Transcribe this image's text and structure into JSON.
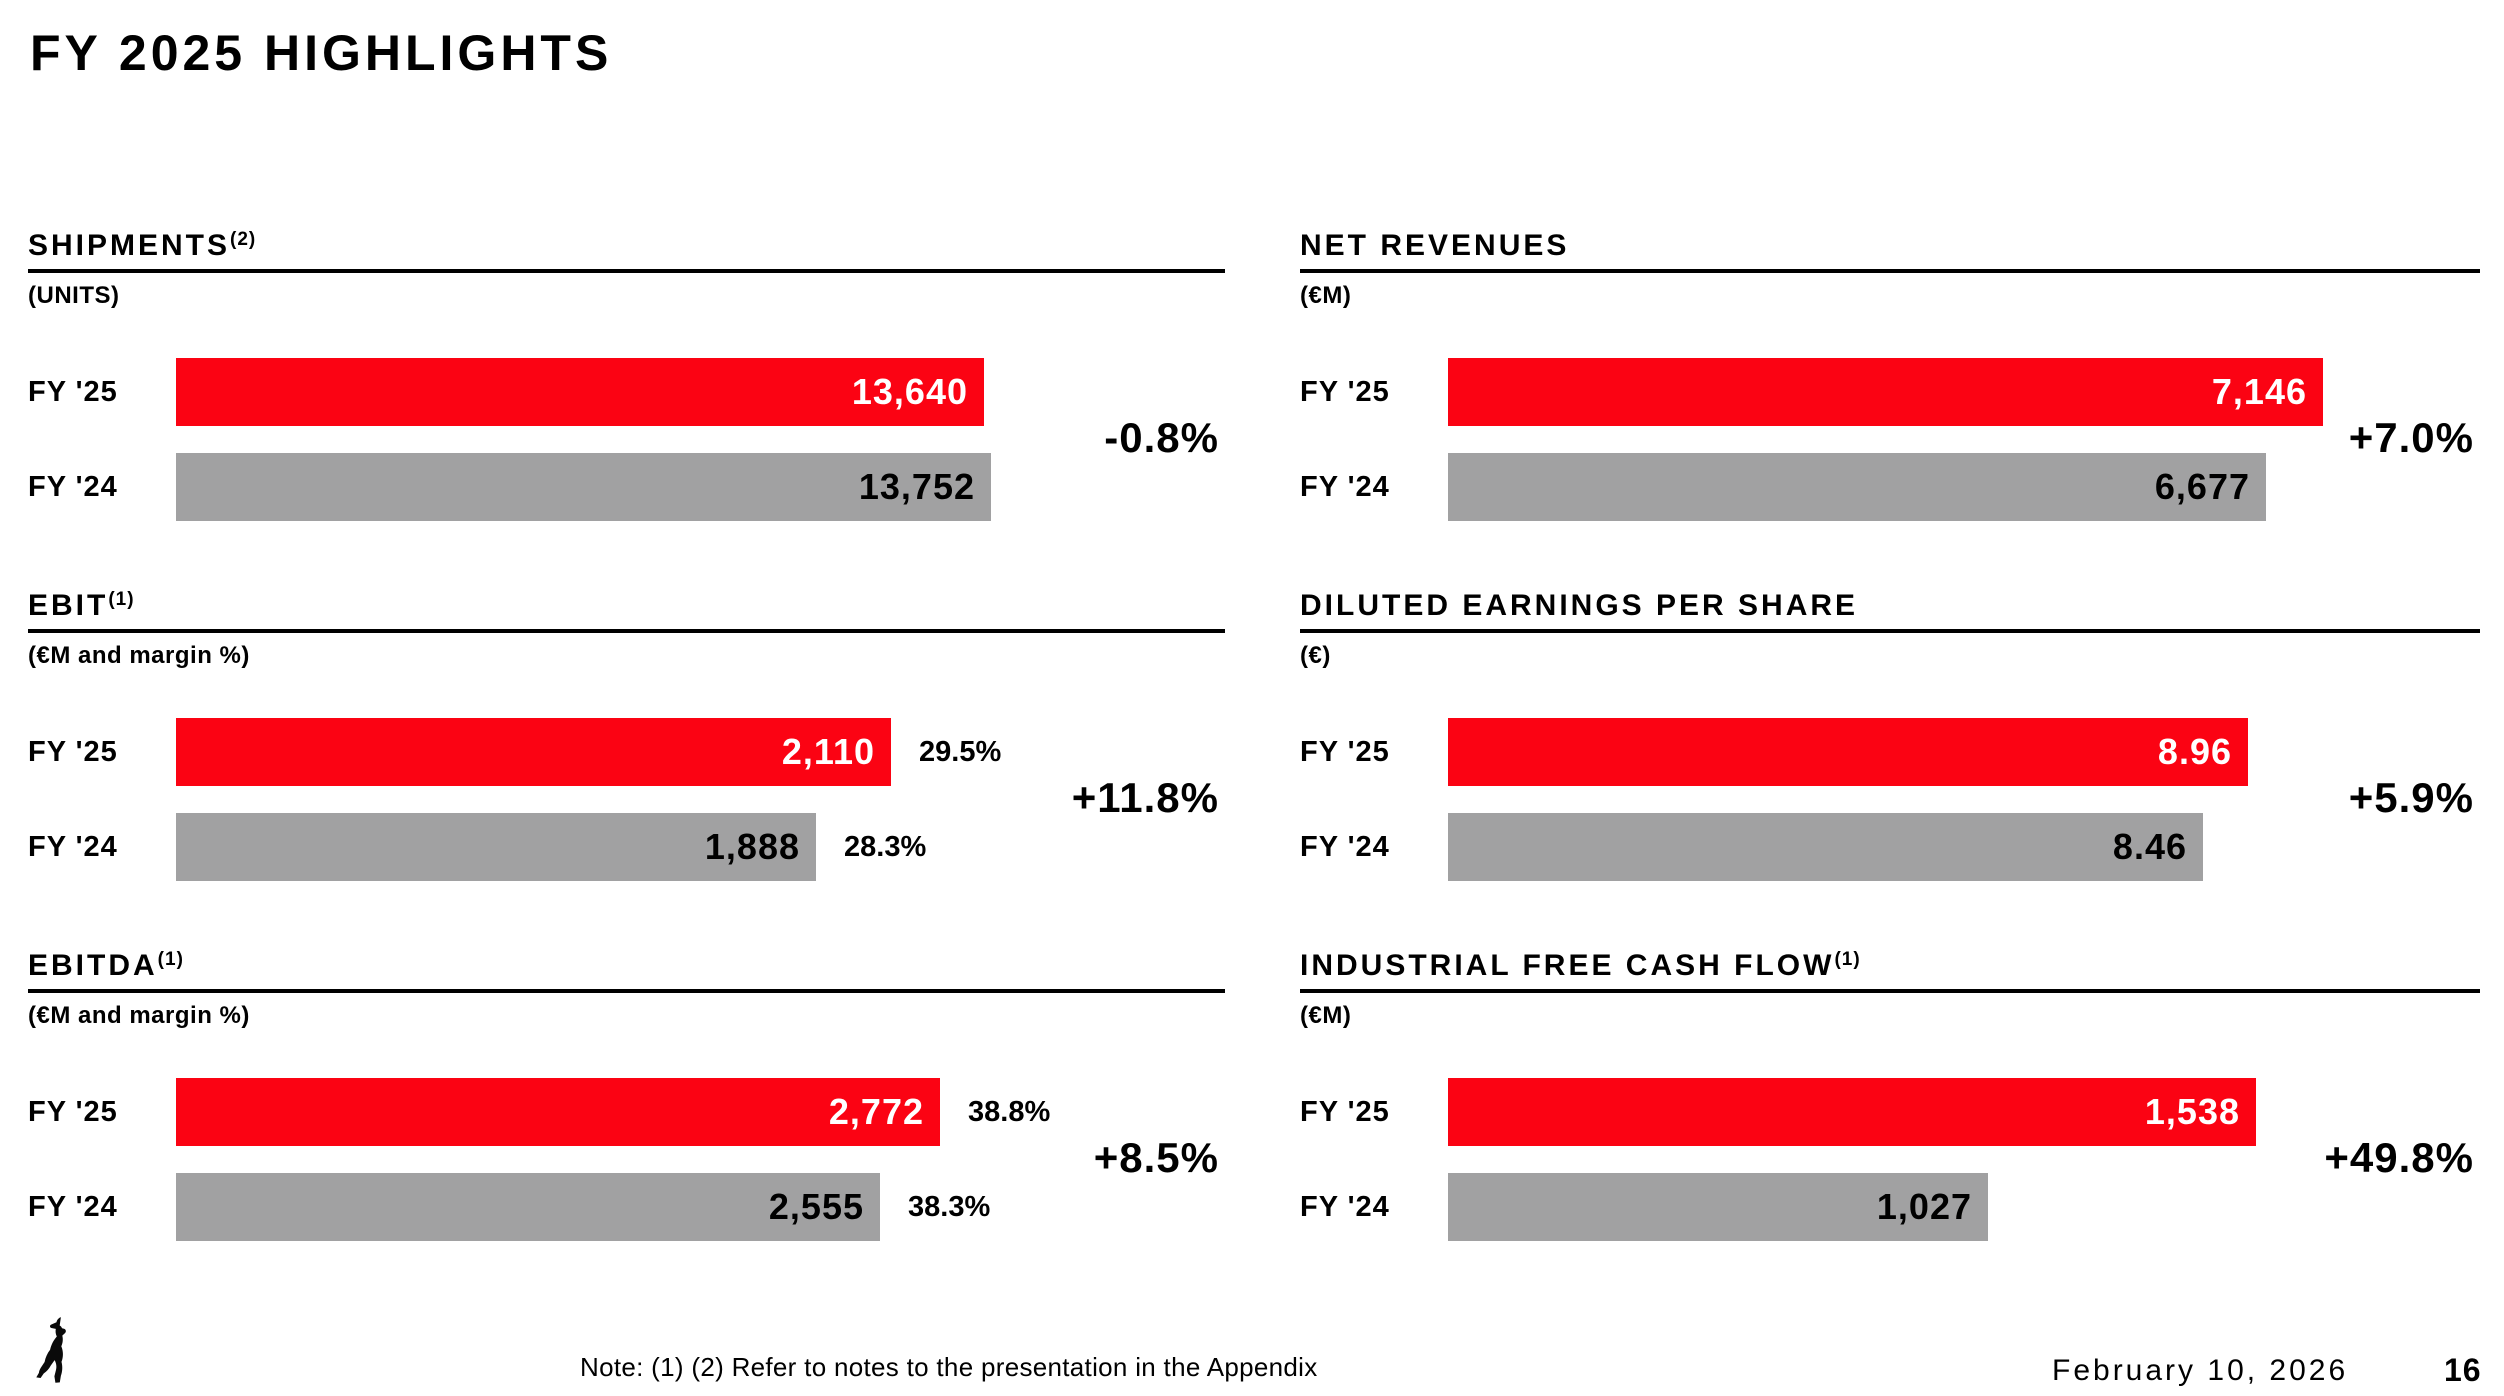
{
  "slide": {
    "title": "FY 2025 HIGHLIGHTS"
  },
  "colors": {
    "bar_red": "#FB0313",
    "bar_gray": "#A1A1A2",
    "text": "#000000",
    "background": "#FFFFFF"
  },
  "chart_data": [
    {
      "type": "bar",
      "orientation": "horizontal",
      "title": "SHIPMENTS",
      "title_superscript": "(2)",
      "unit_label": "(UNITS)",
      "categories": [
        "FY '25",
        "FY '24"
      ],
      "values": [
        13640,
        13752
      ],
      "value_labels": [
        "13,640",
        "13,752"
      ],
      "margin_labels": [
        "",
        ""
      ],
      "change_label": "-0.8%",
      "series_colors": [
        "#FB0313",
        "#A1A1A2"
      ],
      "legend_position": "none",
      "grid": false
    },
    {
      "type": "bar",
      "orientation": "horizontal",
      "title": "NET REVENUES",
      "title_superscript": "",
      "unit_label": "(€M)",
      "categories": [
        "FY '25",
        "FY '24"
      ],
      "values": [
        7146,
        6677
      ],
      "value_labels": [
        "7,146",
        "6,677"
      ],
      "margin_labels": [
        "",
        ""
      ],
      "change_label": "+7.0%",
      "series_colors": [
        "#FB0313",
        "#A1A1A2"
      ],
      "legend_position": "none",
      "grid": false
    },
    {
      "type": "bar",
      "orientation": "horizontal",
      "title": "EBIT",
      "title_superscript": "(1)",
      "unit_label": "(€M and margin %)",
      "categories": [
        "FY '25",
        "FY '24"
      ],
      "values": [
        2110,
        1888
      ],
      "value_labels": [
        "2,110",
        "1,888"
      ],
      "margin_labels": [
        "29.5%",
        "28.3%"
      ],
      "change_label": "+11.8%",
      "series_colors": [
        "#FB0313",
        "#A1A1A2"
      ],
      "legend_position": "none",
      "grid": false
    },
    {
      "type": "bar",
      "orientation": "horizontal",
      "title": "DILUTED EARNINGS PER SHARE",
      "title_superscript": "",
      "unit_label": "(€)",
      "categories": [
        "FY '25",
        "FY '24"
      ],
      "values": [
        8.96,
        8.46
      ],
      "value_labels": [
        "8.96",
        "8.46"
      ],
      "margin_labels": [
        "",
        ""
      ],
      "change_label": "+5.9%",
      "series_colors": [
        "#FB0313",
        "#A1A1A2"
      ],
      "legend_position": "none",
      "grid": false
    },
    {
      "type": "bar",
      "orientation": "horizontal",
      "title": "EBITDA",
      "title_superscript": "(1)",
      "unit_label": "(€M and margin %)",
      "categories": [
        "FY '25",
        "FY '24"
      ],
      "values": [
        2772,
        2555
      ],
      "value_labels": [
        "2,772",
        "2,555"
      ],
      "margin_labels": [
        "38.8%",
        "38.3%"
      ],
      "change_label": "+8.5%",
      "series_colors": [
        "#FB0313",
        "#A1A1A2"
      ],
      "legend_position": "none",
      "grid": false
    },
    {
      "type": "bar",
      "orientation": "horizontal",
      "title": "INDUSTRIAL FREE CASH FLOW",
      "title_superscript": "(1)",
      "unit_label": "(€M)",
      "categories": [
        "FY '25",
        "FY '24"
      ],
      "values": [
        1538,
        1027
      ],
      "value_labels": [
        "1,538",
        "1,027"
      ],
      "margin_labels": [
        "",
        ""
      ],
      "change_label": "+49.8%",
      "series_colors": [
        "#FB0313",
        "#A1A1A2"
      ],
      "legend_position": "none",
      "grid": false
    }
  ],
  "footer": {
    "note": "Note: (1) (2) Refer to notes to the presentation in the Appendix",
    "date": "February 10, 2026",
    "page_number": "16",
    "logo": "ferrari-prancing-horse"
  }
}
